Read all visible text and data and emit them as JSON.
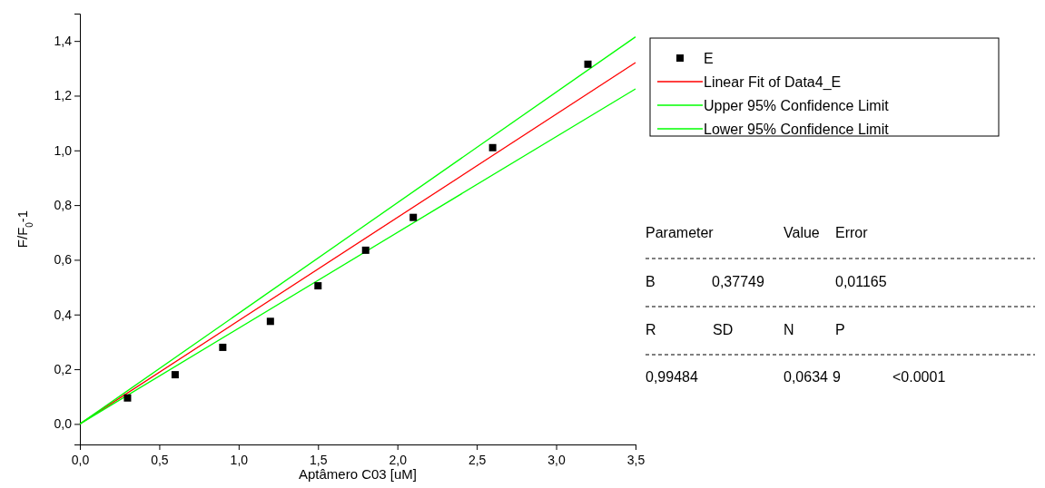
{
  "chart_data": {
    "type": "scatter",
    "xlabel": "Aptâmero C03 [uM]",
    "ylabel": "F/F$_{0}$-1",
    "xlim": [
      0,
      3.5
    ],
    "xticks": [
      {
        "value": 0,
        "label": "0,0"
      },
      {
        "value": 0.5,
        "label": "0,5"
      },
      {
        "value": 1,
        "label": "1,0"
      },
      {
        "value": 1.5,
        "label": "1,5"
      },
      {
        "value": 2,
        "label": "2,0"
      },
      {
        "value": 2.5,
        "label": "2,5"
      },
      {
        "value": 3,
        "label": "3,0"
      },
      {
        "value": 3.5,
        "label": "3,5"
      }
    ],
    "ylim": [
      -0.075,
      1.5
    ],
    "yticks": [
      {
        "value": 0,
        "label": "0,0"
      },
      {
        "value": 0.2,
        "label": "0,2"
      },
      {
        "value": 0.4,
        "label": "0,4"
      },
      {
        "value": 0.6,
        "label": "0,6"
      },
      {
        "value": 0.8,
        "label": "0,8"
      },
      {
        "value": 1,
        "label": "1,0"
      },
      {
        "value": 1.2,
        "label": "1,2"
      },
      {
        "value": 1.4,
        "label": "1,4"
      }
    ],
    "grid": false,
    "legend": "top right",
    "series": [
      {
        "name": "E",
        "marker": "square",
        "color": "#000000",
        "x": [
          0.3,
          0.6,
          0.9,
          1.2,
          1.5,
          1.8,
          2.1,
          2.6,
          3.2
        ],
        "values": [
          0.095,
          0.18,
          0.28,
          0.375,
          0.505,
          0.635,
          0.755,
          1.01,
          1.315
        ]
      },
      {
        "name": "Linear Fit of Data4_E",
        "type": "line",
        "color": "#ff0000",
        "x": [
          0,
          3.5
        ],
        "values": [
          0,
          1.321
        ]
      },
      {
        "name": "Upper 95% Confidence Limit",
        "type": "line",
        "color": "#00ff00",
        "x": [
          0,
          3.5
        ],
        "values": [
          0,
          1.415
        ]
      },
      {
        "name": "Lower 95% Confidence Limit",
        "type": "line",
        "color": "#00ff00",
        "x": [
          0,
          3.5
        ],
        "values": [
          0,
          1.225
        ]
      }
    ],
    "annotations": [
      "Parameter",
      "Value",
      "Error",
      "B",
      "0,37749",
      "0,01165",
      "R",
      "SD",
      "N",
      "P",
      "0,99484",
      "0,0634",
      "9",
      "<0.0001"
    ]
  }
}
